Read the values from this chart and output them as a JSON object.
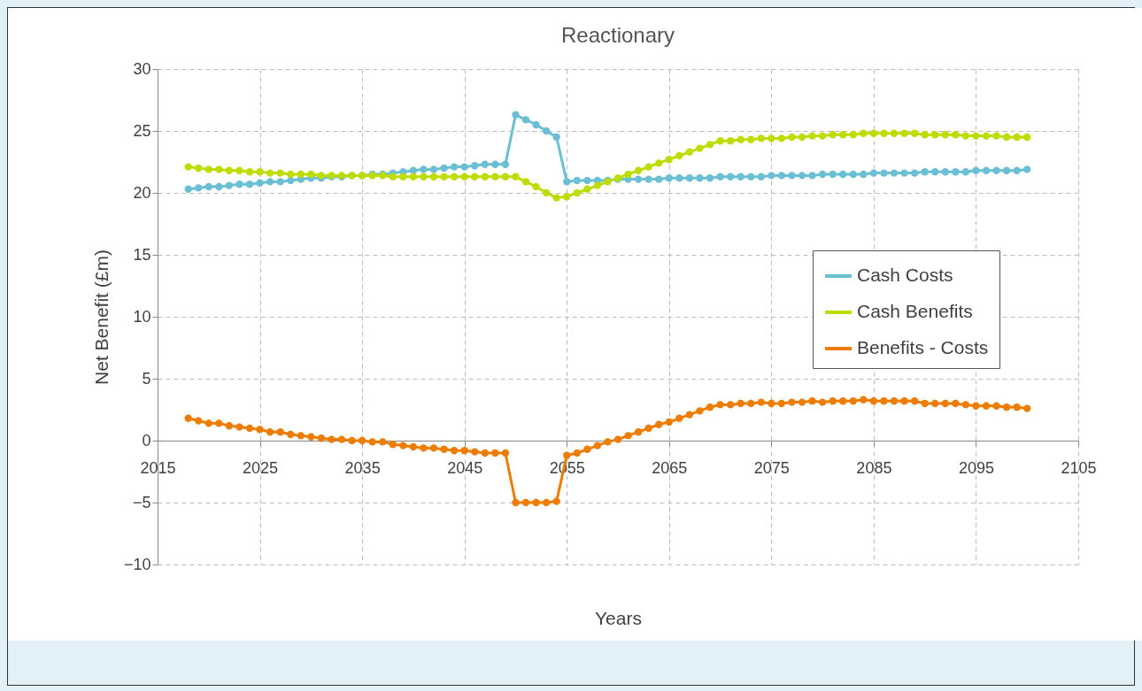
{
  "chart_data": {
    "type": "line",
    "title": "Reactionary",
    "xlabel": "Years",
    "ylabel": "Net Benefit (£m)",
    "x": [
      2018,
      2019,
      2020,
      2021,
      2022,
      2023,
      2024,
      2025,
      2026,
      2027,
      2028,
      2029,
      2030,
      2031,
      2032,
      2033,
      2034,
      2035,
      2036,
      2037,
      2038,
      2039,
      2040,
      2041,
      2042,
      2043,
      2044,
      2045,
      2046,
      2047,
      2048,
      2049,
      2050,
      2051,
      2052,
      2053,
      2054,
      2055,
      2056,
      2057,
      2058,
      2059,
      2060,
      2061,
      2062,
      2063,
      2064,
      2065,
      2066,
      2067,
      2068,
      2069,
      2070,
      2071,
      2072,
      2073,
      2074,
      2075,
      2076,
      2077,
      2078,
      2079,
      2080,
      2081,
      2082,
      2083,
      2084,
      2085,
      2086,
      2087,
      2088,
      2089,
      2090,
      2091,
      2092,
      2093,
      2094,
      2095,
      2096,
      2097,
      2098,
      2099,
      2100
    ],
    "series": [
      {
        "name": "Cash Costs",
        "color": "#6bbfd4",
        "values": [
          20.3,
          20.4,
          20.5,
          20.5,
          20.6,
          20.7,
          20.7,
          20.8,
          20.9,
          20.9,
          21.0,
          21.1,
          21.2,
          21.2,
          21.3,
          21.3,
          21.4,
          21.4,
          21.5,
          21.5,
          21.6,
          21.7,
          21.8,
          21.9,
          21.9,
          22.0,
          22.1,
          22.1,
          22.2,
          22.3,
          22.3,
          22.3,
          26.3,
          25.9,
          25.5,
          25.0,
          24.5,
          20.9,
          21.0,
          21.0,
          21.0,
          21.0,
          21.1,
          21.1,
          21.1,
          21.1,
          21.1,
          21.2,
          21.2,
          21.2,
          21.2,
          21.2,
          21.3,
          21.3,
          21.3,
          21.3,
          21.3,
          21.4,
          21.4,
          21.4,
          21.4,
          21.4,
          21.5,
          21.5,
          21.5,
          21.5,
          21.5,
          21.6,
          21.6,
          21.6,
          21.6,
          21.6,
          21.7,
          21.7,
          21.7,
          21.7,
          21.7,
          21.8,
          21.8,
          21.8,
          21.8,
          21.8,
          21.9
        ]
      },
      {
        "name": "Cash Benefits",
        "color": "#bfdc00",
        "values": [
          22.1,
          22.0,
          21.9,
          21.9,
          21.8,
          21.8,
          21.7,
          21.7,
          21.6,
          21.6,
          21.5,
          21.5,
          21.5,
          21.4,
          21.4,
          21.4,
          21.4,
          21.4,
          21.4,
          21.4,
          21.3,
          21.3,
          21.3,
          21.3,
          21.3,
          21.3,
          21.3,
          21.3,
          21.3,
          21.3,
          21.3,
          21.3,
          21.3,
          20.9,
          20.5,
          20.0,
          19.6,
          19.7,
          20.0,
          20.3,
          20.6,
          20.9,
          21.2,
          21.5,
          21.8,
          22.1,
          22.4,
          22.7,
          23.0,
          23.3,
          23.6,
          23.9,
          24.2,
          24.2,
          24.3,
          24.3,
          24.4,
          24.4,
          24.4,
          24.5,
          24.5,
          24.6,
          24.6,
          24.7,
          24.7,
          24.7,
          24.8,
          24.8,
          24.8,
          24.8,
          24.8,
          24.8,
          24.7,
          24.7,
          24.7,
          24.7,
          24.6,
          24.6,
          24.6,
          24.6,
          24.5,
          24.5,
          24.5
        ]
      },
      {
        "name": "Benefits - Costs",
        "color": "#ed7d00",
        "values": [
          1.8,
          1.6,
          1.4,
          1.4,
          1.2,
          1.1,
          1.0,
          0.9,
          0.7,
          0.7,
          0.5,
          0.4,
          0.3,
          0.2,
          0.1,
          0.1,
          0.0,
          0.0,
          -0.1,
          -0.1,
          -0.3,
          -0.4,
          -0.5,
          -0.6,
          -0.6,
          -0.7,
          -0.8,
          -0.8,
          -0.9,
          -1.0,
          -1.0,
          -1.0,
          -5.0,
          -5.0,
          -5.0,
          -5.0,
          -4.9,
          -1.2,
          -1.0,
          -0.7,
          -0.4,
          -0.1,
          0.1,
          0.4,
          0.7,
          1.0,
          1.3,
          1.5,
          1.8,
          2.1,
          2.4,
          2.7,
          2.9,
          2.9,
          3.0,
          3.0,
          3.1,
          3.0,
          3.0,
          3.1,
          3.1,
          3.2,
          3.1,
          3.2,
          3.2,
          3.2,
          3.3,
          3.2,
          3.2,
          3.2,
          3.2,
          3.2,
          3.0,
          3.0,
          3.0,
          3.0,
          2.9,
          2.8,
          2.8,
          2.8,
          2.7,
          2.7,
          2.6
        ]
      }
    ],
    "xlim": [
      2015,
      2105
    ],
    "xticks": [
      2015,
      2025,
      2035,
      2045,
      2055,
      2065,
      2075,
      2085,
      2095,
      2105
    ],
    "ylim": [
      -10,
      30
    ],
    "yticks": [
      -10,
      -5,
      0,
      5,
      10,
      15,
      20,
      25,
      30
    ],
    "grid": true,
    "legend": "right",
    "marker": "circle",
    "line_style": "solid"
  }
}
